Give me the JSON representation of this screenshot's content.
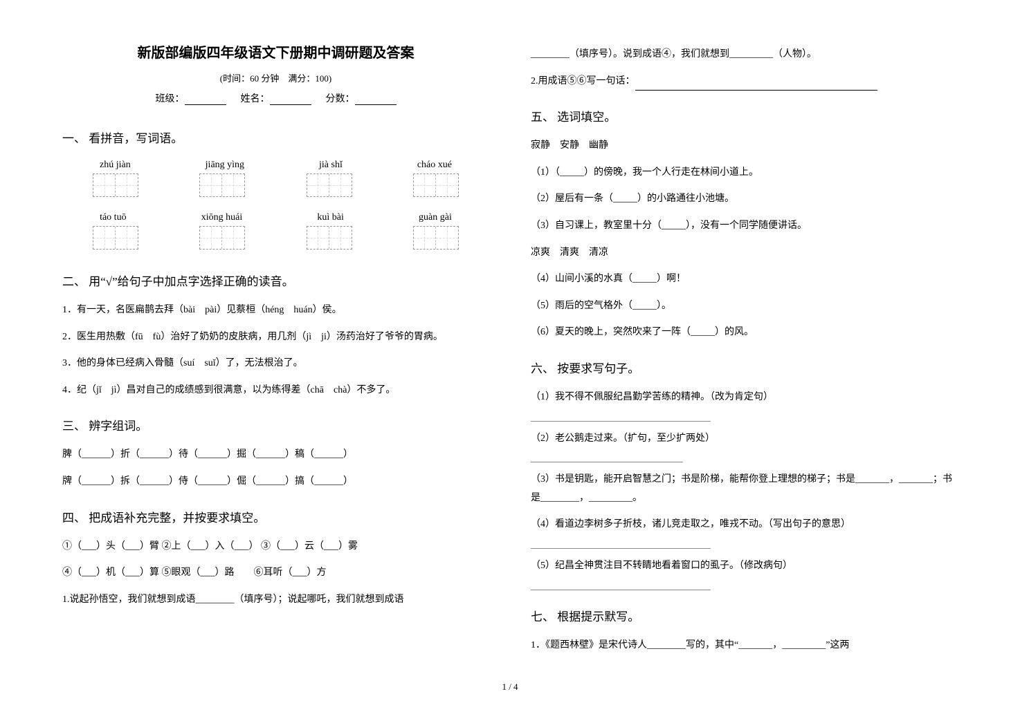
{
  "title": "新版部编版四年级语文下册期中调研题及答案",
  "meta": "(时间：60 分钟　满分：100)",
  "info": {
    "class_label": "班级：",
    "name_label": "姓名：",
    "score_label": "分数："
  },
  "fontsize": {
    "title": 20,
    "heading": 17,
    "body": 14,
    "meta": 13
  },
  "colors": {
    "text": "#000000",
    "dashed": "#bbbbbb",
    "rule": "#888888",
    "bg": "#ffffff"
  },
  "sec1": {
    "heading": "一、 看拼音，写词语。",
    "rows": [
      {
        "pinyin": [
          "zhú jiàn",
          "jiāng yìng",
          "jià shǐ",
          "cháo xué"
        ],
        "cells": 2
      },
      {
        "pinyin": [
          "táo tuō",
          "xiōng huái",
          "kuì bài",
          "guàn gài"
        ],
        "cells": 2
      }
    ]
  },
  "sec2": {
    "heading": "二、 用“√”给句子中加点字选择正确的读音。",
    "items": [
      "1．有一天，名医扁鹊去拜（bài　pài）见蔡桓（héng　huán）侯。",
      "2．医生用热敷（fū　fù）治好了奶奶的皮肤病，用几剂（jì　ji）汤药治好了爷爷的胃病。",
      "3．他的身体已经病入骨髓（suí　suǐ）了，无法根治了。",
      "4．纪（jǐ　jì）昌对自己的成绩感到很满意，以为练得差（chā　chà）不多了。"
    ]
  },
  "sec3": {
    "heading": "三、 辨字组词。",
    "line1": "脾（______）折（______）待（______）掘（______）稿（______）",
    "line2": "牌（______）拆（______）侍（______）倔（______）搞（______）"
  },
  "sec4": {
    "heading": "四、 把成语补充完整，并按要求填空。",
    "line1": "①（___）头（___）臂 ②上（___）入（___） ③（___）云（___）雾",
    "line2": "④（___）机（___）算 ⑤眼观（___）路　　⑥耳听（___）方",
    "q1a": "1.说起孙悟空，我们就想到成语________（填序号）；说起哪吒，我们就想到成语",
    "q1b_left": "________（填序号）。说到成语④，我们就想到_________（人物）。",
    "q2": "2.用成语⑤⑥写一句话："
  },
  "sec5": {
    "heading": "五、 选词填空。",
    "group1_words": "寂静　安静　幽静",
    "g1": [
      "（1）（_____）的傍晚，我一个人行走在林间小道上。",
      "（2）屋后有一条（_____）的小路通往小池塘。",
      "（3）自习课上，教室里十分（_____），没有一个同学随便讲话。"
    ],
    "group2_words": "凉爽　清爽　清凉",
    "g2": [
      "（4）山间小溪的水真（_____）啊！",
      "（5）雨后的空气格外（_____）。",
      "（6）夏天的晚上，突然吹来了一阵（_____）的风。"
    ]
  },
  "sec6": {
    "heading": "六、 按要求写句子。",
    "items": [
      "（1）我不得不佩服纪昌勤学苦练的精神。（改为肯定句）",
      "（2）老公鹅走过来。（扩句，至少扩两处）",
      "（3）书是钥匙，能开启智慧之门；书是阶梯，能帮你登上理想的梯子；书是_______，_______；书是________，_________。",
      "（4）看道边李树多子折枝，诸儿竞走取之，唯戎不动。（写出句子的意思）",
      "（5）纪昌全神贯注目不转睛地看着窗口的虱子。（修改病句）"
    ]
  },
  "sec7": {
    "heading": "七、 根据提示默写。",
    "q1": "1．《题西林壁》是宋代诗人________写的，其中“_______，_________”这两"
  },
  "page_num": "1 / 4"
}
